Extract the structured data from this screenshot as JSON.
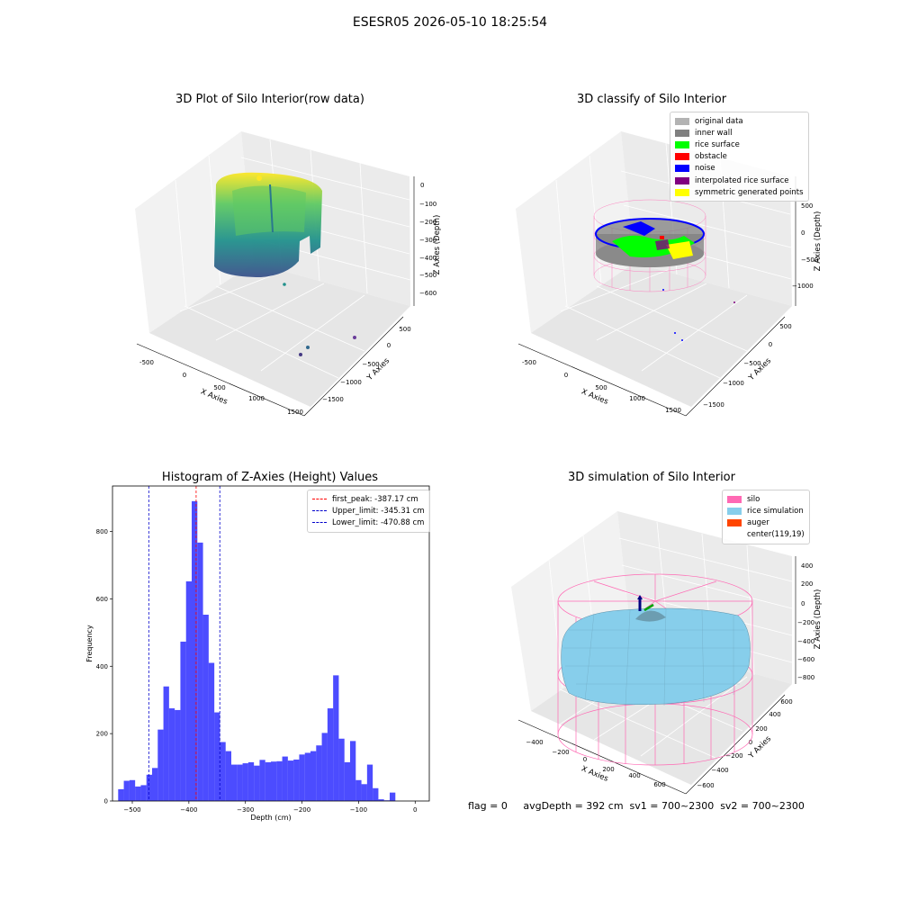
{
  "suptitle": "ESESR05 2026-05-10 18:25:54",
  "footer": "flag = 0     avgDepth = 392 cm  sv1 = 700~2300  sv2 = 700~2300",
  "panels": {
    "raw": {
      "title": "3D Plot of Silo Interior(row data)",
      "xlabel": "X Axies",
      "ylabel": "Y Axies",
      "zlabel": "Z Axies (Depth)",
      "xticks": [
        "-500",
        "0",
        "500",
        "1000",
        "1500"
      ],
      "yticks": [
        "500",
        "0",
        "−500",
        "−1000",
        "−1500"
      ],
      "zticks": [
        "0",
        "−100",
        "−200",
        "−300",
        "−400",
        "−500",
        "−600"
      ]
    },
    "classify": {
      "title": "3D classify of Silo Interior",
      "xlabel": "X Axies",
      "ylabel": "Y Axies",
      "zlabel": "Z Axies (Depth)",
      "xticks": [
        "-500",
        "0",
        "500",
        "1000",
        "1500"
      ],
      "yticks": [
        "500",
        "0",
        "−500",
        "−1000",
        "−1500"
      ],
      "zticks": [
        "500",
        "0",
        "−500",
        "−1000"
      ],
      "legend": [
        {
          "label": "original data",
          "color": "#b3b3b3"
        },
        {
          "label": "inner wall",
          "color": "#808080"
        },
        {
          "label": "rice surface",
          "color": "#00ff00"
        },
        {
          "label": "obstacle",
          "color": "#ff0000"
        },
        {
          "label": "noise",
          "color": "#0000ff"
        },
        {
          "label": "interpolated rice surface",
          "color": "#800080"
        },
        {
          "label": "symmetric generated points",
          "color": "#ffff00"
        }
      ]
    },
    "simulation": {
      "title": "3D simulation of Silo Interior",
      "xlabel": "X Axies",
      "ylabel": "Y Axies",
      "zlabel": "Z Axies (Depth)",
      "xticks": [
        "−400",
        "−200",
        "0",
        "200",
        "400",
        "600"
      ],
      "yticks": [
        "600",
        "400",
        "200",
        "0",
        "−200",
        "−400",
        "−600"
      ],
      "zticks": [
        "400",
        "200",
        "0",
        "−200",
        "−400",
        "−600",
        "−800"
      ],
      "legend": [
        {
          "label": "silo",
          "color": "#ff69b4"
        },
        {
          "label": "rice simulation",
          "color": "#87ceeb"
        },
        {
          "label": "auger",
          "color": "#ff4500"
        },
        {
          "label": "center(119,19)",
          "color": "#ffffff"
        }
      ]
    }
  },
  "chart_data": {
    "type": "bar",
    "title": "Histogram of Z-Axies (Height) Values",
    "xlabel": "Depth (cm)",
    "ylabel": "Frequency",
    "xlim": [
      -535,
      25
    ],
    "ylim": [
      0,
      935
    ],
    "xticks": [
      -500,
      -400,
      -300,
      -200,
      -100,
      0
    ],
    "yticks": [
      0,
      200,
      400,
      600,
      800
    ],
    "bar_color": "#0000ff",
    "bins": [
      [
        -525,
        -515,
        35
      ],
      [
        -515,
        -505,
        60
      ],
      [
        -505,
        -495,
        62
      ],
      [
        -495,
        -485,
        43
      ],
      [
        -485,
        -475,
        47
      ],
      [
        -475,
        -465,
        78
      ],
      [
        -465,
        -455,
        98
      ],
      [
        -455,
        -445,
        212
      ],
      [
        -445,
        -435,
        340
      ],
      [
        -435,
        -425,
        275
      ],
      [
        -425,
        -415,
        270
      ],
      [
        -415,
        -405,
        473
      ],
      [
        -405,
        -395,
        652
      ],
      [
        -395,
        -385,
        890
      ],
      [
        -385,
        -375,
        767
      ],
      [
        -375,
        -365,
        553
      ],
      [
        -365,
        -355,
        410
      ],
      [
        -355,
        -345,
        263
      ],
      [
        -345,
        -335,
        175
      ],
      [
        -335,
        -325,
        148
      ],
      [
        -325,
        -315,
        108
      ],
      [
        -315,
        -305,
        108
      ],
      [
        -305,
        -295,
        112
      ],
      [
        -295,
        -285,
        115
      ],
      [
        -285,
        -275,
        105
      ],
      [
        -275,
        -265,
        122
      ],
      [
        -265,
        -255,
        115
      ],
      [
        -255,
        -245,
        117
      ],
      [
        -245,
        -235,
        118
      ],
      [
        -235,
        -225,
        132
      ],
      [
        -225,
        -215,
        120
      ],
      [
        -215,
        -205,
        123
      ],
      [
        -205,
        -195,
        138
      ],
      [
        -195,
        -185,
        143
      ],
      [
        -185,
        -175,
        148
      ],
      [
        -175,
        -165,
        165
      ],
      [
        -165,
        -155,
        202
      ],
      [
        -155,
        -145,
        275
      ],
      [
        -145,
        -135,
        373
      ],
      [
        -135,
        -125,
        185
      ],
      [
        -125,
        -115,
        115
      ],
      [
        -115,
        -105,
        178
      ],
      [
        -105,
        -95,
        62
      ],
      [
        -95,
        -85,
        50
      ],
      [
        -85,
        -75,
        108
      ],
      [
        -75,
        -65,
        38
      ],
      [
        -65,
        -55,
        5
      ],
      [
        -55,
        -45,
        2
      ],
      [
        -45,
        -35,
        25
      ]
    ],
    "vlines": [
      {
        "label": "first_peak: -387.17 cm",
        "x": -387.17,
        "color": "#ff0000"
      },
      {
        "label": "Upper_limit: -345.31 cm",
        "x": -345.31,
        "color": "#0000cc"
      },
      {
        "label": "Lower_limit: -470.88 cm",
        "x": -470.88,
        "color": "#0000cc"
      }
    ]
  }
}
